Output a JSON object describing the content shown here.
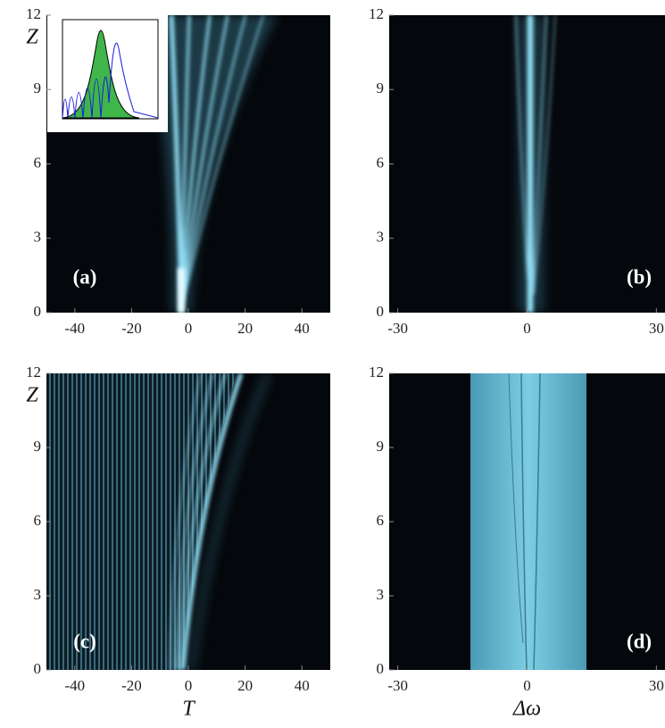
{
  "chart_data": [
    {
      "type": "heatmap",
      "panel_label": "(a)",
      "y_label": "Z",
      "xlim": [
        -50,
        50
      ],
      "xticks": [
        -40,
        -20,
        0,
        20,
        40
      ],
      "ylim": [
        0,
        12
      ],
      "yticks": [
        0,
        3,
        6,
        9,
        12
      ]
    },
    {
      "type": "heatmap",
      "panel_label": "(b)",
      "xlim": [
        -32,
        32
      ],
      "xticks": [
        -30,
        0,
        30
      ],
      "ylim": [
        0,
        12
      ],
      "yticks": [
        0,
        3,
        6,
        9,
        12
      ]
    },
    {
      "type": "heatmap",
      "panel_label": "(c)",
      "y_label": "Z",
      "x_label": "T",
      "xlim": [
        -50,
        50
      ],
      "xticks": [
        -40,
        -20,
        0,
        20,
        40
      ],
      "ylim": [
        0,
        12
      ],
      "yticks": [
        0,
        3,
        6,
        9,
        12
      ]
    },
    {
      "type": "heatmap",
      "panel_label": "(d)",
      "x_label": "Δω",
      "xlim": [
        -32,
        32
      ],
      "xticks": [
        -30,
        0,
        30
      ],
      "ylim": [
        0,
        12
      ],
      "yticks": [
        0,
        3,
        6,
        9,
        12
      ]
    }
  ]
}
